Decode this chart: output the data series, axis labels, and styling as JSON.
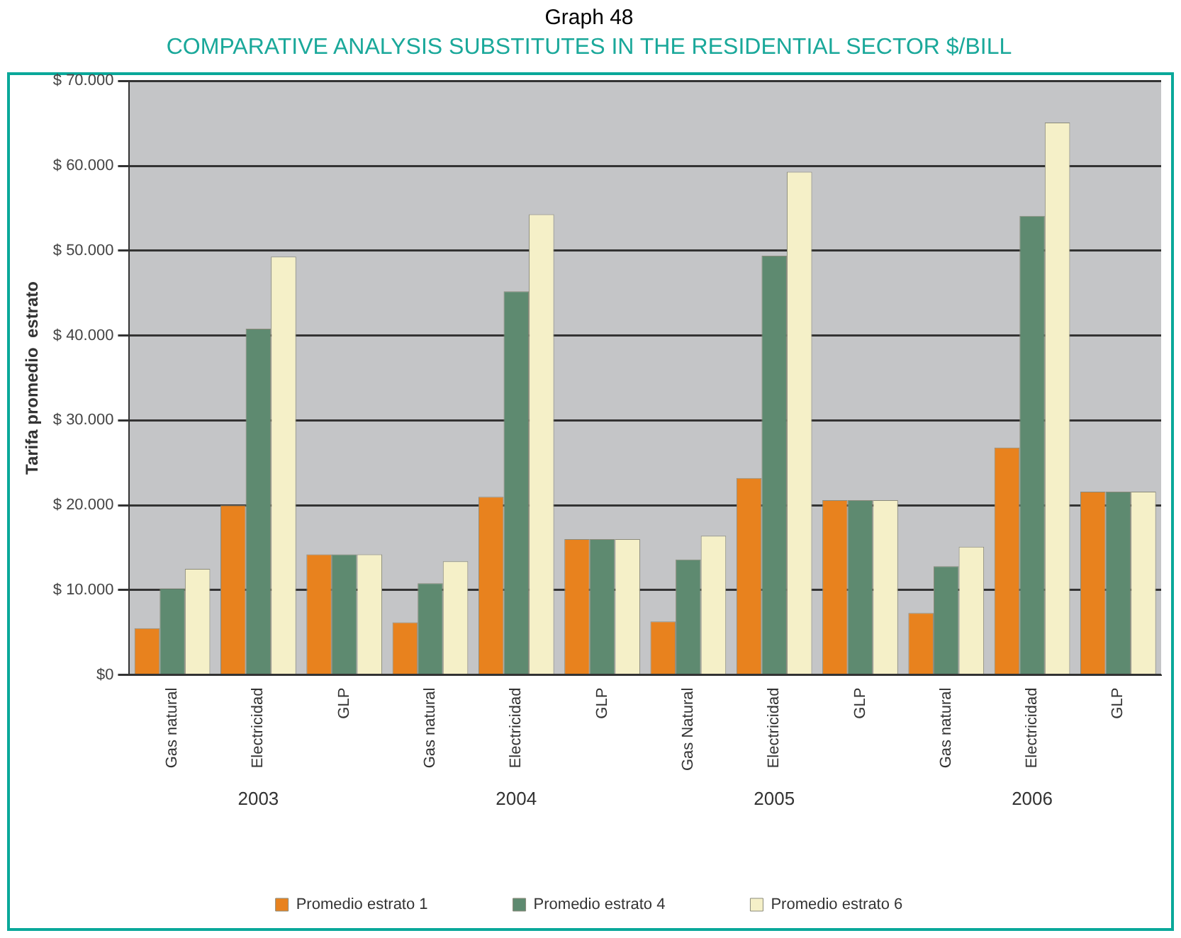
{
  "chart_data": {
    "type": "bar",
    "title": "Graph 48",
    "subtitle": "COMPARATIVE ANALYSIS SUBSTITUTES IN THE RESIDENTIAL SECTOR $/BILL",
    "ylabel": "Tarifa promedio  estrato",
    "categories": [
      "Gas natural",
      "Electricidad",
      "GLP",
      "Gas natural",
      "Electricidad",
      "GLP",
      "Gas Natural",
      "Electricidad",
      "GLP",
      "Gas natural",
      "Electricidad",
      "GLP"
    ],
    "annotations": [
      "2003",
      "2004",
      "2005",
      "2006"
    ],
    "series": [
      {
        "name": "Promedio estrato 1",
        "color": "#e8821e",
        "values": [
          5500,
          20000,
          14200,
          6200,
          21000,
          16000,
          6300,
          23200,
          20600,
          7300,
          26800,
          21600
        ]
      },
      {
        "name": "Promedio estrato 4",
        "color": "#5e8a70",
        "values": [
          10200,
          40800,
          14200,
          10800,
          45200,
          16000,
          13600,
          49400,
          20600,
          12800,
          54100,
          21600
        ]
      },
      {
        "name": "Promedio estrato 6",
        "color": "#f5f0c8",
        "values": [
          12500,
          49300,
          14200,
          13400,
          54300,
          16000,
          16400,
          59300,
          20600,
          15100,
          65100,
          21600
        ]
      }
    ],
    "ylim": [
      0,
      70000
    ],
    "yticks": [
      {
        "value": 0,
        "label": "$0"
      },
      {
        "value": 10000,
        "label": "$ 10.000"
      },
      {
        "value": 20000,
        "label": "$ 20.000"
      },
      {
        "value": 30000,
        "label": "$ 30.000"
      },
      {
        "value": 40000,
        "label": "$ 40.000"
      },
      {
        "value": 50000,
        "label": "$ 50.000"
      },
      {
        "value": 60000,
        "label": "$ 60.000"
      },
      {
        "value": 70000,
        "label": "$ 70.000"
      }
    ],
    "grid": "y",
    "legend": "bottom"
  }
}
